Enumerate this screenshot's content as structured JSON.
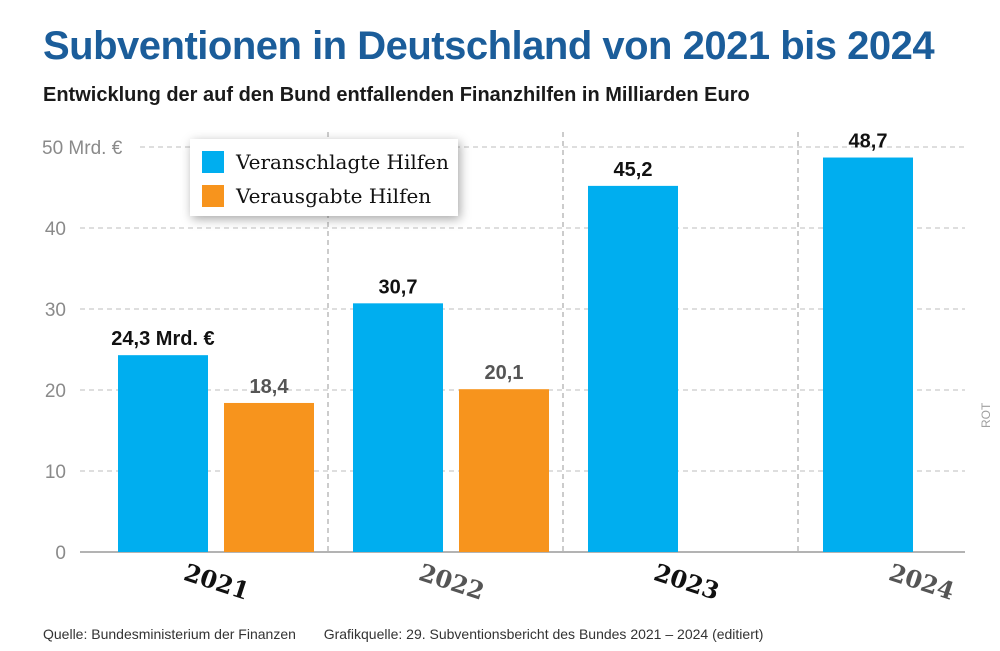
{
  "title": "Subventionen in Deutschland von 2021 bis 2024",
  "subtitle": "Entwicklung der auf den Bund entfallenden Finanzhilfen in Milliarden Euro",
  "source": "Quelle: Bundesministerium der Finanzen",
  "graphic_source": "Grafikquelle: 29. Subventionsbericht des Bundes 2021 – 2024 (editiert)",
  "credit": "ROT",
  "colors": {
    "planned": "#00aeef",
    "spent": "#f7941d",
    "title": "#1b5d9a"
  },
  "chart_data": {
    "type": "bar",
    "title": "Subventionen in Deutschland von 2021 bis 2024",
    "ylabel": "Mrd. €",
    "ylim": [
      0,
      50
    ],
    "yticks": [
      0,
      10,
      20,
      30,
      40,
      50
    ],
    "ytick_labels": [
      "0",
      "10",
      "20",
      "30",
      "40",
      "50 Mrd. €"
    ],
    "grid": true,
    "legend_position": "top-left",
    "categories": [
      "2021",
      "2022",
      "2023",
      "2024"
    ],
    "series": [
      {
        "name": "Veranschlagte Hilfen",
        "color": "#00aeef",
        "values": [
          24.3,
          30.7,
          45.2,
          48.7
        ],
        "labels": [
          "24,3 Mrd. €",
          "30,7",
          "45,2",
          "48,7"
        ]
      },
      {
        "name": "Verausgabte Hilfen",
        "color": "#f7941d",
        "values": [
          18.4,
          20.1,
          null,
          null
        ],
        "labels": [
          "18,4",
          "20,1",
          null,
          null
        ]
      }
    ]
  }
}
